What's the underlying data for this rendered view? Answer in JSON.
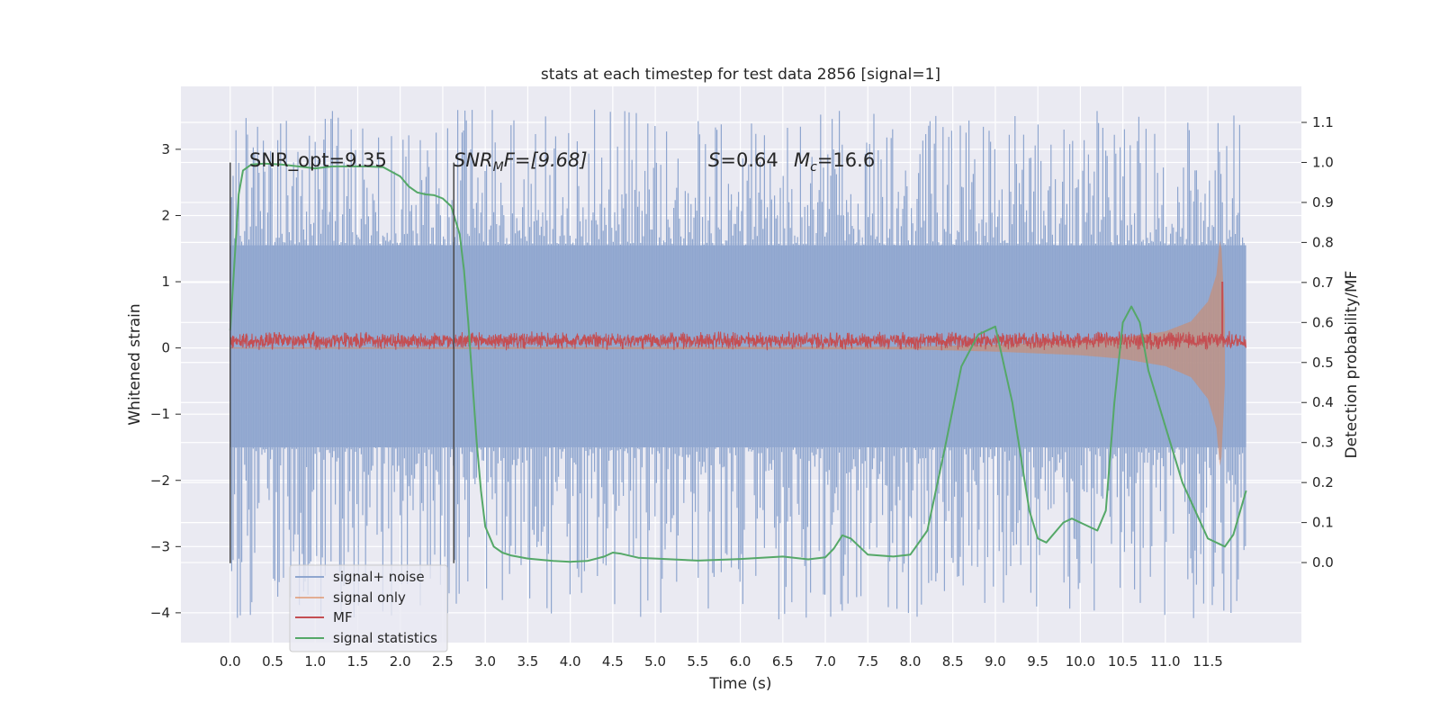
{
  "chart_data": {
    "type": "line",
    "title": "stats at each timestep for test data 2856 [signal=1]",
    "xlabel": "Time (s)",
    "ylabel": "Whitened strain",
    "y2label": "Detection probability/MF",
    "xlim": [
      -0.58,
      12.6
    ],
    "ylim": [
      -4.45,
      3.95
    ],
    "y2lim": [
      -0.2,
      1.19
    ],
    "x_ticks": [
      "0.0",
      "0.5",
      "1.0",
      "1.5",
      "2.0",
      "2.5",
      "3.0",
      "3.5",
      "4.0",
      "4.5",
      "5.0",
      "5.5",
      "6.0",
      "6.5",
      "7.0",
      "7.5",
      "8.0",
      "8.5",
      "9.0",
      "9.5",
      "10.0",
      "10.5",
      "11.0",
      "11.5"
    ],
    "y_ticks": [
      "3",
      "2",
      "1",
      "0",
      "−1",
      "−2",
      "−3",
      "−4"
    ],
    "y2_ticks": [
      "1.1",
      "1.0",
      "0.9",
      "0.8",
      "0.7",
      "0.6",
      "0.5",
      "0.4",
      "0.3",
      "0.2",
      "0.1",
      "0.0"
    ],
    "grid": true,
    "legend_position": "lower-left",
    "annotations": {
      "snr_opt": "SNR_opt=9.35",
      "snr_mf_prefix": "SNR",
      "snr_mf_sub": "M",
      "snr_mf_suffix": "F=[9.68]",
      "s_var": "S",
      "s_value": "=0.64",
      "mc_var": "M",
      "mc_sub": "c",
      "mc_value": "=16.6"
    },
    "segment_markers_s": [
      0.0,
      2.63
    ],
    "series": [
      {
        "name": "signal+ noise",
        "color": "#8fa6cf",
        "x_range": [
          0.0,
          11.95
        ],
        "band_quantiles": {
          "p_low": -1.5,
          "p_high": 1.55
        },
        "peak_range": [
          -4.1,
          3.6
        ]
      },
      {
        "name": "signal only",
        "color": "#dd8452",
        "x": [
          0.0,
          8.0,
          9.0,
          10.0,
          10.5,
          11.0,
          11.3,
          11.5,
          11.6,
          11.65,
          11.7
        ],
        "amplitude": [
          0.01,
          0.02,
          0.05,
          0.1,
          0.15,
          0.25,
          0.4,
          0.7,
          1.1,
          1.75,
          0.5
        ]
      },
      {
        "name": "MF",
        "color": "#c44e52",
        "x_range": [
          0.0,
          11.95
        ],
        "center": 0.11,
        "half_width": 0.1,
        "spike": {
          "x": 11.67,
          "y": 1.0
        }
      },
      {
        "name": "signal statistics",
        "color": "#55a868",
        "x": [
          0.0,
          0.05,
          0.1,
          0.15,
          0.25,
          0.4,
          0.6,
          0.8,
          1.0,
          1.2,
          1.4,
          1.6,
          1.8,
          2.0,
          2.1,
          2.2,
          2.3,
          2.4,
          2.5,
          2.6,
          2.7,
          2.75,
          2.8,
          2.85,
          2.9,
          2.95,
          3.0,
          3.1,
          3.2,
          3.3,
          3.5,
          3.8,
          4.0,
          4.2,
          4.4,
          4.5,
          4.6,
          4.8,
          5.0,
          5.5,
          6.0,
          6.5,
          6.8,
          7.0,
          7.1,
          7.2,
          7.3,
          7.5,
          7.8,
          8.0,
          8.2,
          8.4,
          8.6,
          8.8,
          9.0,
          9.2,
          9.4,
          9.5,
          9.6,
          9.8,
          9.9,
          10.0,
          10.2,
          10.3,
          10.4,
          10.5,
          10.6,
          10.7,
          10.8,
          11.0,
          11.2,
          11.5,
          11.7,
          11.8,
          11.95
        ],
        "y": [
          0.58,
          0.75,
          0.92,
          0.98,
          0.995,
          0.997,
          0.995,
          0.99,
          0.985,
          0.99,
          0.99,
          0.99,
          0.988,
          0.965,
          0.94,
          0.925,
          0.92,
          0.918,
          0.91,
          0.89,
          0.82,
          0.73,
          0.6,
          0.45,
          0.3,
          0.18,
          0.09,
          0.04,
          0.025,
          0.018,
          0.01,
          0.004,
          0.002,
          0.004,
          0.015,
          0.025,
          0.022,
          0.012,
          0.01,
          0.005,
          0.009,
          0.015,
          0.008,
          0.013,
          0.035,
          0.068,
          0.06,
          0.02,
          0.015,
          0.02,
          0.08,
          0.28,
          0.49,
          0.57,
          0.59,
          0.4,
          0.13,
          0.06,
          0.05,
          0.1,
          0.11,
          0.1,
          0.08,
          0.13,
          0.4,
          0.6,
          0.64,
          0.6,
          0.48,
          0.34,
          0.2,
          0.06,
          0.04,
          0.07,
          0.18
        ]
      }
    ]
  }
}
